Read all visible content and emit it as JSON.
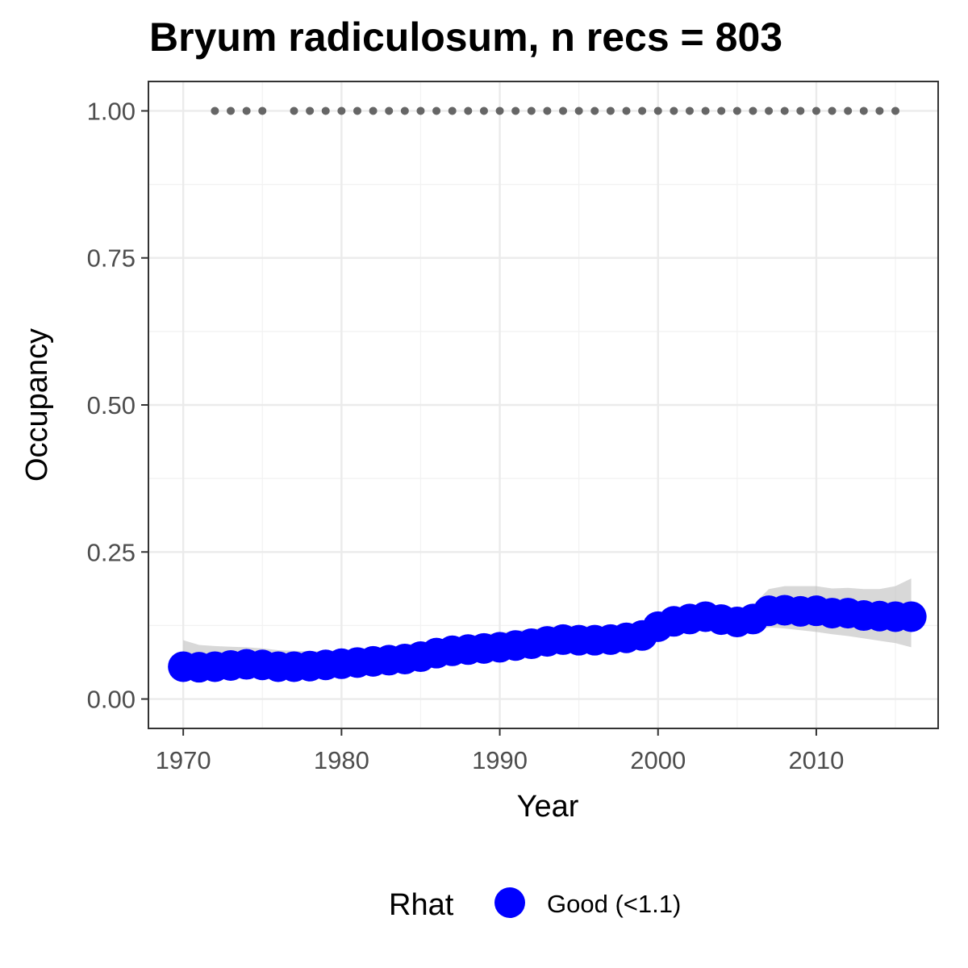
{
  "chart_data": {
    "type": "line",
    "title": "Bryum radiculosum, n recs = 803",
    "xlabel": "Year",
    "ylabel": "Occupancy",
    "xlim": [
      1967.8,
      2017.7
    ],
    "ylim": [
      -0.05,
      1.05
    ],
    "x_ticks": [
      1970,
      1980,
      1990,
      2000,
      2010
    ],
    "y_ticks": [
      0,
      0.25,
      0.5,
      0.75,
      1.0
    ],
    "y_tick_labels": [
      "0.00",
      "0.25",
      "0.50",
      "0.75",
      "1.00"
    ],
    "grid": true,
    "legend": {
      "title": "Rhat",
      "position": "bottom",
      "entries": [
        {
          "label": "Good (<1.1)",
          "color": "#0000ff"
        }
      ]
    },
    "series": [
      {
        "name": "Good (<1.1)",
        "color": "#0000ff",
        "x": [
          1970,
          1971,
          1972,
          1973,
          1974,
          1975,
          1976,
          1977,
          1978,
          1979,
          1980,
          1981,
          1982,
          1983,
          1984,
          1985,
          1986,
          1987,
          1988,
          1989,
          1990,
          1991,
          1992,
          1993,
          1994,
          1995,
          1996,
          1997,
          1998,
          1999,
          2000,
          2001,
          2002,
          2003,
          2004,
          2005,
          2006,
          2007,
          2008,
          2009,
          2010,
          2011,
          2012,
          2013,
          2014,
          2015,
          2016
        ],
        "y": [
          0.055,
          0.054,
          0.055,
          0.057,
          0.059,
          0.058,
          0.055,
          0.055,
          0.056,
          0.058,
          0.06,
          0.062,
          0.064,
          0.066,
          0.068,
          0.072,
          0.078,
          0.082,
          0.084,
          0.086,
          0.088,
          0.091,
          0.094,
          0.098,
          0.101,
          0.1,
          0.1,
          0.101,
          0.104,
          0.108,
          0.123,
          0.132,
          0.136,
          0.14,
          0.135,
          0.131,
          0.136,
          0.15,
          0.151,
          0.149,
          0.15,
          0.146,
          0.146,
          0.142,
          0.141,
          0.14,
          0.14
        ],
        "lower": [
          0.042,
          0.041,
          0.042,
          0.044,
          0.045,
          0.045,
          0.043,
          0.043,
          0.044,
          0.045,
          0.047,
          0.049,
          0.051,
          0.053,
          0.055,
          0.059,
          0.064,
          0.068,
          0.07,
          0.072,
          0.074,
          0.076,
          0.079,
          0.082,
          0.084,
          0.084,
          0.084,
          0.085,
          0.087,
          0.091,
          0.104,
          0.112,
          0.116,
          0.118,
          0.113,
          0.11,
          0.115,
          0.122,
          0.12,
          0.117,
          0.114,
          0.11,
          0.107,
          0.103,
          0.099,
          0.095,
          0.088
        ]
      }
    ],
    "upper": [
      0.1,
      0.092,
      0.09,
      0.089,
      0.088,
      0.086,
      0.083,
      0.082,
      0.081,
      0.082,
      0.083,
      0.085,
      0.087,
      0.089,
      0.092,
      0.096,
      0.101,
      0.104,
      0.107,
      0.11,
      0.113,
      0.116,
      0.119,
      0.122,
      0.125,
      0.124,
      0.123,
      0.124,
      0.126,
      0.13,
      0.146,
      0.155,
      0.159,
      0.162,
      0.158,
      0.154,
      0.16,
      0.187,
      0.192,
      0.192,
      0.192,
      0.188,
      0.189,
      0.187,
      0.187,
      0.192,
      0.205
    ],
    "detections": {
      "color": "#666666",
      "y": 1.0,
      "x": [
        1972,
        1973,
        1974,
        1975,
        1977,
        1978,
        1979,
        1980,
        1981,
        1982,
        1983,
        1984,
        1985,
        1986,
        1987,
        1988,
        1989,
        1990,
        1991,
        1992,
        1993,
        1994,
        1995,
        1996,
        1997,
        1998,
        1999,
        2000,
        2001,
        2002,
        2003,
        2004,
        2005,
        2006,
        2007,
        2008,
        2009,
        2010,
        2011,
        2012,
        2013,
        2014,
        2015
      ]
    }
  }
}
